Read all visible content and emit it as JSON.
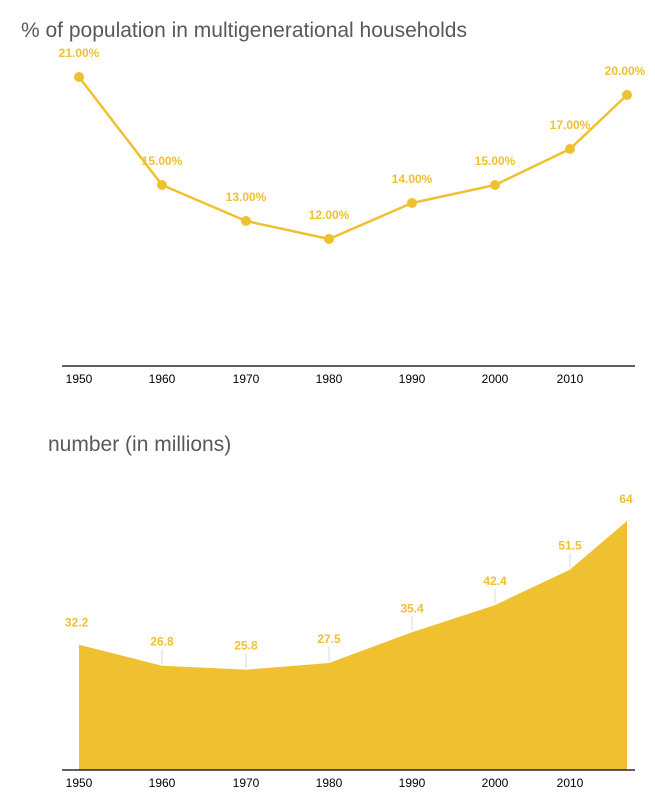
{
  "colors": {
    "accent": "#efc131",
    "axis": "#000000",
    "leader": "#d9d9d9"
  },
  "chart_data": [
    {
      "type": "line",
      "title": "% of population in multigenerational households",
      "categories": [
        "1950",
        "1960",
        "1970",
        "1980",
        "1990",
        "2000",
        "2010",
        ""
      ],
      "values": [
        21,
        15,
        13,
        12,
        14,
        15,
        17,
        20
      ],
      "labels": [
        "21.00%",
        "15.00%",
        "13.00%",
        "12.00%",
        "14.00%",
        "15.00%",
        "17.00%",
        "20.00%"
      ],
      "ylim": [
        0,
        25
      ],
      "grid": false
    },
    {
      "type": "area",
      "title": "number (in millions)",
      "categories": [
        "1950",
        "1960",
        "1970",
        "1980",
        "1990",
        "2000",
        "2010",
        ""
      ],
      "values": [
        32.2,
        26.8,
        25.8,
        27.5,
        35.4,
        42.4,
        51.5,
        64
      ],
      "labels": [
        "32.2",
        "26.8",
        "25.8",
        "27.5",
        "35.4",
        "42.4",
        "51.5",
        "64"
      ],
      "ylim": [
        0,
        70
      ],
      "grid": false
    }
  ]
}
